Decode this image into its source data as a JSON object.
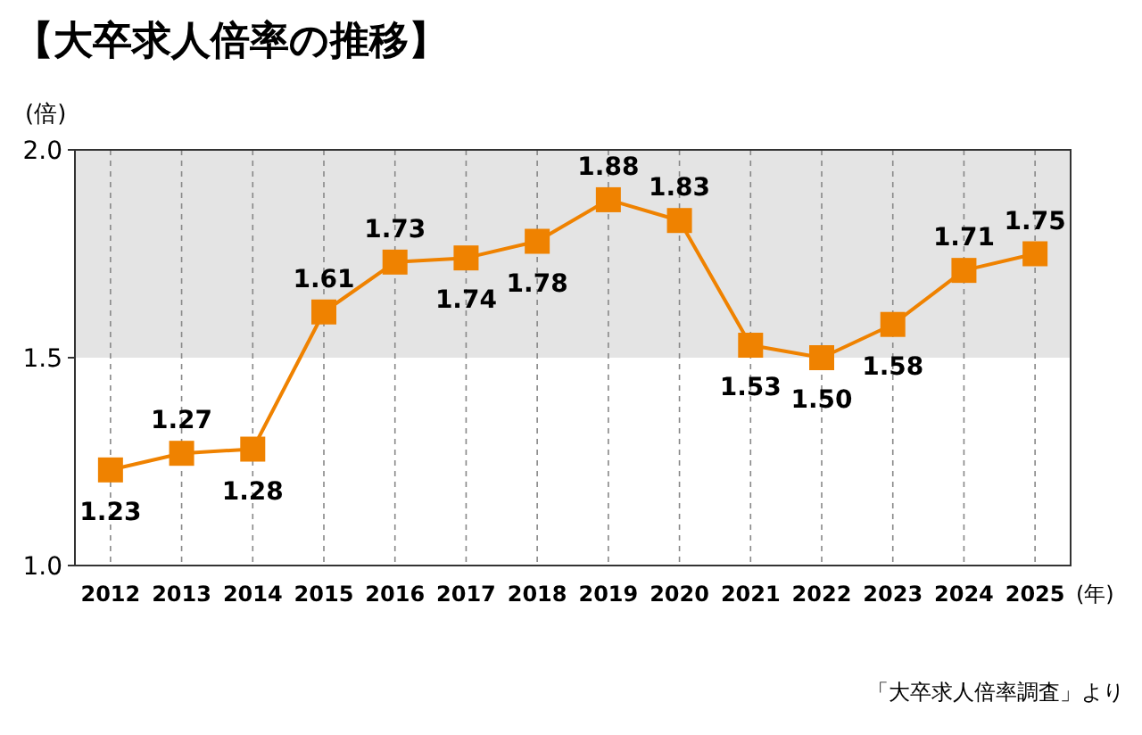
{
  "chart_data": {
    "type": "line",
    "title": "【大卒求人倍率の推移】",
    "ylabel": "(倍)",
    "xlabel": "(年)",
    "categories": [
      "2012",
      "2013",
      "2014",
      "2015",
      "2016",
      "2017",
      "2018",
      "2019",
      "2020",
      "2021",
      "2022",
      "2023",
      "2024",
      "2025"
    ],
    "series": [
      {
        "color": "#ef8200",
        "values": [
          1.23,
          1.27,
          1.28,
          1.61,
          1.73,
          1.74,
          1.78,
          1.88,
          1.83,
          1.53,
          1.5,
          1.58,
          1.71,
          1.75
        ],
        "value_labels": [
          "1.23",
          "1.27",
          "1.28",
          "1.61",
          "1.73",
          "1.74",
          "1.78",
          "1.88",
          "1.83",
          "1.53",
          "1.50",
          "1.58",
          "1.71",
          "1.75"
        ]
      }
    ],
    "ylim": [
      1.0,
      2.0
    ],
    "yticks": [
      {
        "value": 1.0,
        "label": "1.0"
      },
      {
        "value": 1.5,
        "label": "1.5"
      },
      {
        "value": 2.0,
        "label": "2.0"
      }
    ],
    "bands": [
      {
        "axis": "y",
        "from": 1.5,
        "to": 2.0,
        "color": "#e4e4e4"
      }
    ],
    "grid": "x",
    "marker": "square",
    "line_style": "solid",
    "annotations": [
      "「大卒求人倍率調査」より"
    ]
  }
}
